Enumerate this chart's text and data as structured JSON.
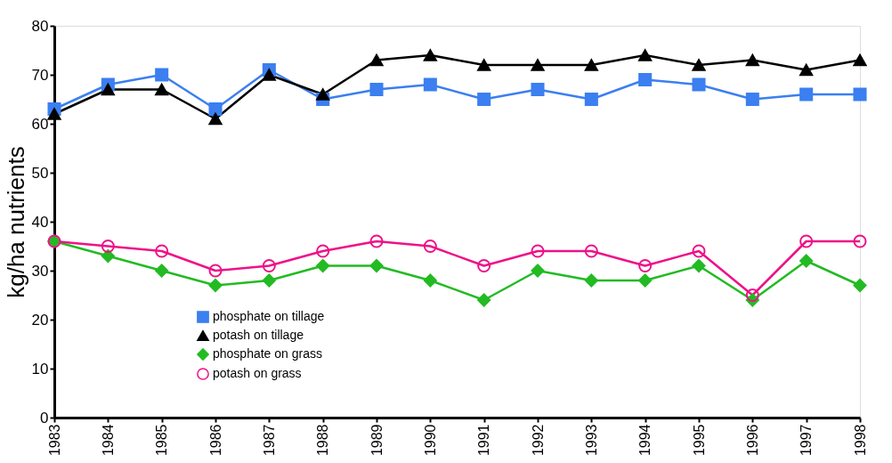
{
  "chart_data": {
    "type": "line",
    "ylabel": "kg/ha nutrients",
    "categories": [
      "1983",
      "1984",
      "1985",
      "1986",
      "1987",
      "1988",
      "1989",
      "1990",
      "1991",
      "1992",
      "1993",
      "1994",
      "1995",
      "1996",
      "1997",
      "1998"
    ],
    "ylim": [
      0,
      80
    ],
    "yticks": [
      0,
      10,
      20,
      30,
      40,
      50,
      60,
      70,
      80
    ],
    "grid": false,
    "legend": "bottom left",
    "series": [
      {
        "name": "phosphate on tillage",
        "color": "#3b7ff0",
        "marker": "square",
        "values": [
          63,
          68,
          70,
          63,
          71,
          65,
          67,
          68,
          65,
          67,
          65,
          69,
          68,
          65,
          66,
          66
        ]
      },
      {
        "name": "potash on tillage",
        "color": "#000000",
        "marker": "triangle",
        "values": [
          62,
          67,
          67,
          61,
          70,
          66,
          73,
          74,
          72,
          72,
          72,
          74,
          72,
          73,
          71,
          73
        ]
      },
      {
        "name": "phosphate on grass",
        "color": "#22bb22",
        "marker": "diamond",
        "values": [
          36,
          33,
          30,
          27,
          28,
          31,
          31,
          28,
          24,
          30,
          28,
          28,
          31,
          24,
          32,
          27
        ]
      },
      {
        "name": "potash on grass",
        "color": "#ee1188",
        "marker": "circle",
        "values": [
          36,
          35,
          34,
          30,
          31,
          34,
          36,
          35,
          31,
          34,
          34,
          31,
          34,
          25,
          36,
          36
        ]
      }
    ]
  }
}
